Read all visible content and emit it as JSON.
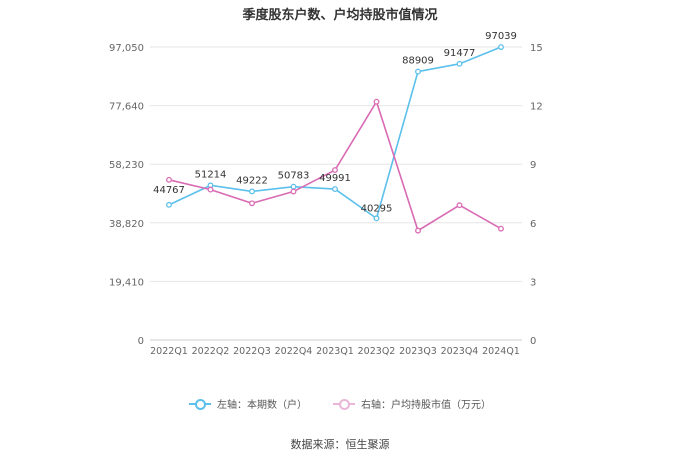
{
  "chart_data": {
    "type": "line",
    "title": "季度股东户数、户均持股市值情况",
    "categories": [
      "2022Q1",
      "2022Q2",
      "2022Q3",
      "2022Q4",
      "2023Q1",
      "2023Q2",
      "2023Q3",
      "2023Q4",
      "2024Q1"
    ],
    "series": [
      {
        "name": "左轴：本期数（户）",
        "axis": "left",
        "color": "#5bc0eb",
        "values": [
          44767,
          51214,
          49222,
          50783,
          49991,
          40295,
          88909,
          91477,
          97039
        ],
        "data_labels": [
          "44767",
          "51214",
          "49222",
          "50783",
          "49991",
          "40295",
          "88909",
          "91477",
          "97039"
        ]
      },
      {
        "name": "右轴：户均持股市值（万元）",
        "axis": "right",
        "color": "#d96bb4",
        "values": [
          8.2,
          7.7,
          7.0,
          7.6,
          8.7,
          12.2,
          5.6,
          6.9,
          5.7
        ]
      }
    ],
    "y_left": {
      "min": 0,
      "max": 97050,
      "ticks": [
        "0",
        "19,410",
        "38,820",
        "58,230",
        "77,640",
        "97,050"
      ]
    },
    "y_right": {
      "min": 0,
      "max": 15,
      "ticks": [
        "0",
        "3",
        "6",
        "9",
        "12",
        "15"
      ]
    },
    "grid": true,
    "legend_position": "bottom"
  },
  "source": "数据来源：恒生聚源"
}
